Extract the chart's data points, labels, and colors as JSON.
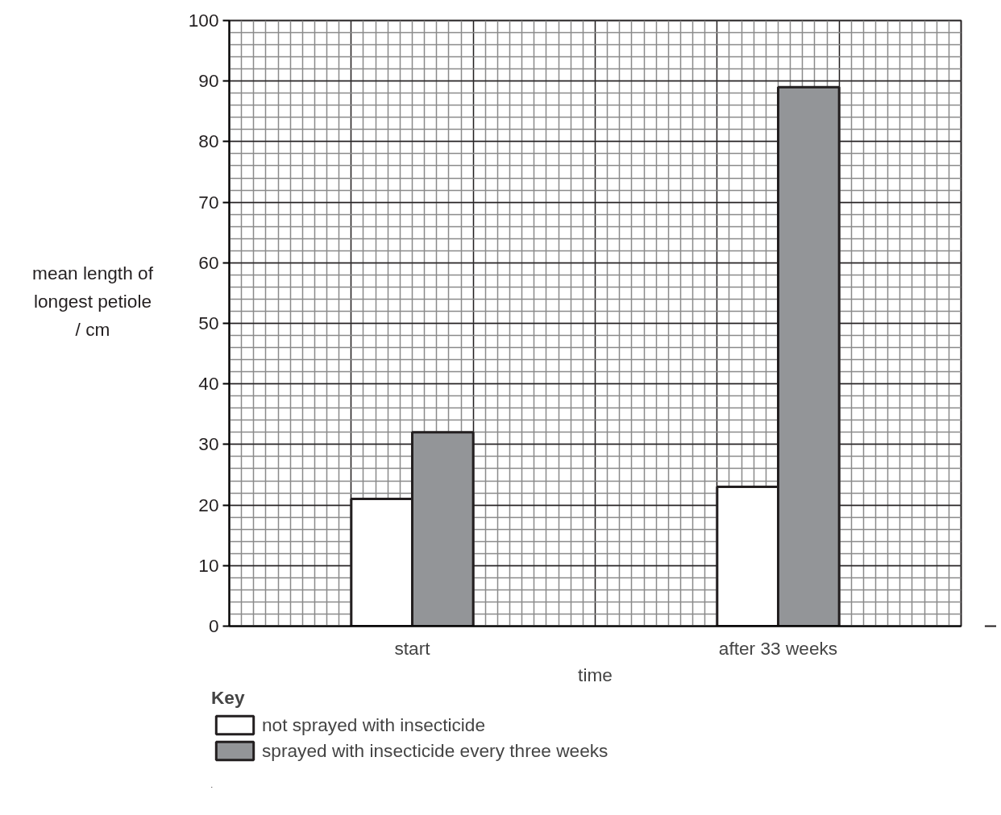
{
  "chart_data": {
    "type": "bar",
    "xlabel": "time",
    "ylabel": "mean length of\nlongest petiole\n/ cm",
    "legend_title": "Key",
    "categories": [
      "start",
      "after 33 weeks"
    ],
    "series": [
      {
        "name": "not sprayed with insecticide",
        "color": "#ffffff",
        "values": [
          21,
          23
        ]
      },
      {
        "name": "sprayed with insecticide every three weeks",
        "color": "#939598",
        "values": [
          32,
          89
        ]
      }
    ],
    "ylim": [
      0,
      100
    ],
    "yticks": [
      0,
      10,
      20,
      30,
      40,
      50,
      60,
      70,
      80,
      90,
      100
    ],
    "grid": true,
    "legend": "bottom"
  }
}
